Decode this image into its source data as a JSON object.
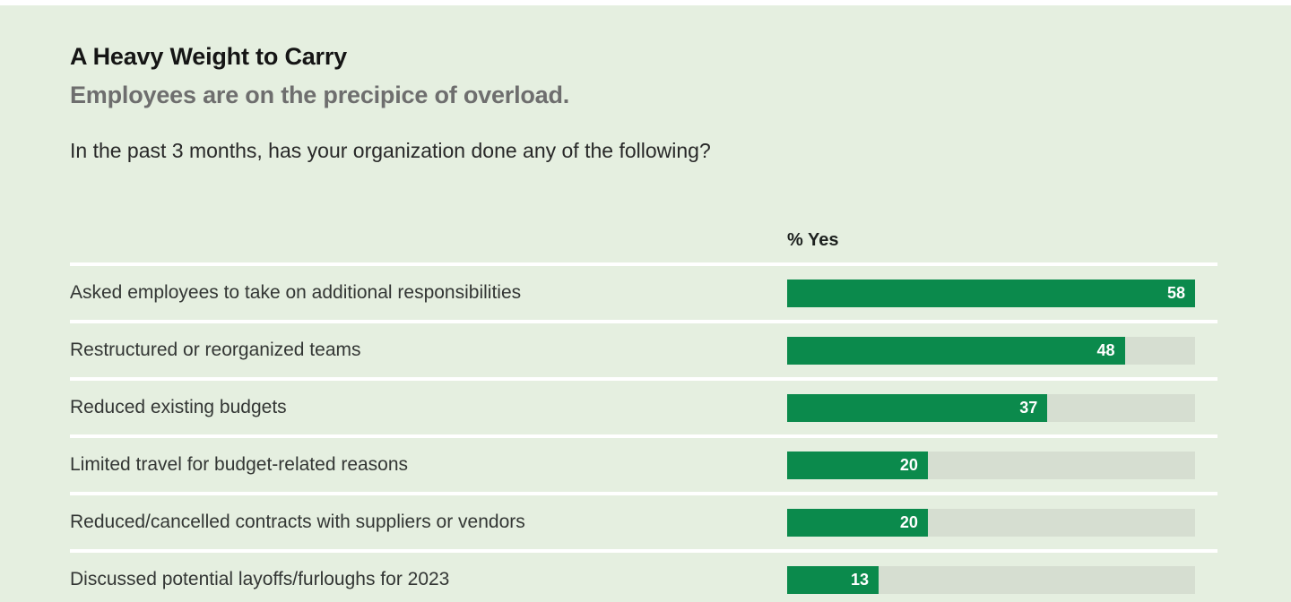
{
  "page": {
    "title": "A Heavy Weight to Carry",
    "subtitle": "Employees are on the precipice of overload.",
    "question": "In the past 3 months, has your organization done any of the following?"
  },
  "chart_data": {
    "type": "bar",
    "orientation": "horizontal",
    "title": "A Heavy Weight to Carry",
    "subtitle": "Employees are on the precipice of overload.",
    "question": "In the past 3 months, has your organization done any of the following?",
    "column_header": "% Yes",
    "categories": [
      "Asked employees to take on additional responsibilities",
      "Restructured or reorganized teams",
      "Reduced existing budgets",
      "Limited travel for budget-related reasons",
      "Reduced/cancelled contracts with suppliers or vendors",
      "Discussed potential layoffs/furloughs for 2023"
    ],
    "values": [
      58,
      48,
      37,
      20,
      20,
      13
    ],
    "scale_max": 58,
    "unit": "% Yes",
    "legend": "none",
    "grid": "off",
    "colors": {
      "bar_fill": "#0b8a4c",
      "bar_track": "#d6ded1",
      "background": "#e5efe0",
      "separator": "#ffffff",
      "value_text": "#ffffff",
      "title_text": "#151515",
      "subtitle_text": "#6e6e6e"
    }
  }
}
